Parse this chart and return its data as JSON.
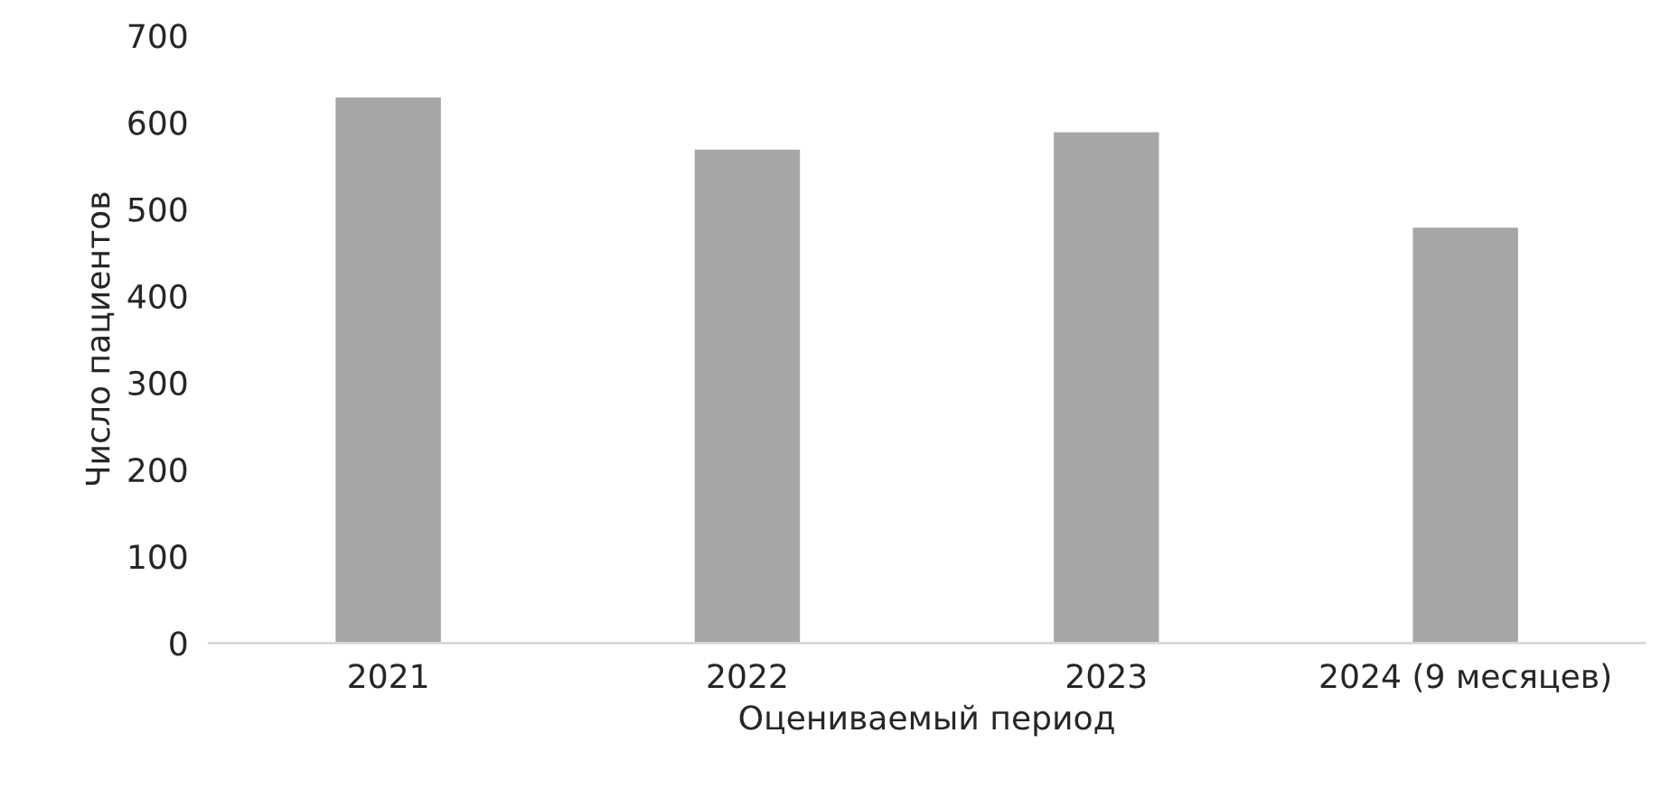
{
  "chart_data": {
    "type": "bar",
    "xlabel": "Оцениваемый период",
    "ylabel": "Число пациентов",
    "categories": [
      "2021",
      "2022",
      "2023",
      "2024 (9 месяцев)"
    ],
    "values": [
      630,
      570,
      590,
      480
    ],
    "color": "#a6a6a6",
    "ylim": [
      0,
      700
    ],
    "yticks": [
      0,
      100,
      200,
      300,
      400,
      500,
      600,
      700
    ],
    "grid": false
  }
}
